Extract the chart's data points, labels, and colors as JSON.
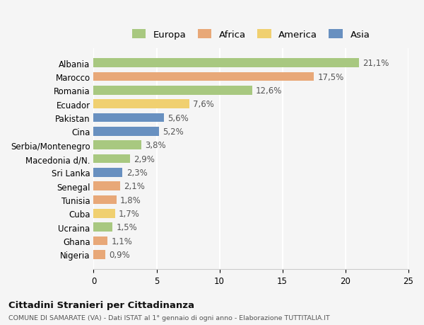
{
  "categories": [
    "Albania",
    "Marocco",
    "Romania",
    "Ecuador",
    "Pakistan",
    "Cina",
    "Serbia/Montenegro",
    "Macedonia d/N.",
    "Sri Lanka",
    "Senegal",
    "Tunisia",
    "Cuba",
    "Ucraina",
    "Ghana",
    "Nigeria"
  ],
  "values": [
    21.1,
    17.5,
    12.6,
    7.6,
    5.6,
    5.2,
    3.8,
    2.9,
    2.3,
    2.1,
    1.8,
    1.7,
    1.5,
    1.1,
    0.9
  ],
  "labels": [
    "21,1%",
    "17,5%",
    "12,6%",
    "7,6%",
    "5,6%",
    "5,2%",
    "3,8%",
    "2,9%",
    "2,3%",
    "2,1%",
    "1,8%",
    "1,7%",
    "1,5%",
    "1,1%",
    "0,9%"
  ],
  "bar_colors": [
    "#a8c880",
    "#e8a878",
    "#a8c880",
    "#f0d070",
    "#6890c0",
    "#6890c0",
    "#a8c880",
    "#a8c880",
    "#6890c0",
    "#e8a878",
    "#e8a878",
    "#f0d070",
    "#a8c880",
    "#e8a878",
    "#e8a878"
  ],
  "legend": [
    {
      "label": "Europa",
      "color": "#a8c880"
    },
    {
      "label": "Africa",
      "color": "#e8a878"
    },
    {
      "label": "America",
      "color": "#f0d070"
    },
    {
      "label": "Asia",
      "color": "#6890c0"
    }
  ],
  "xlim": [
    0,
    25
  ],
  "xticks": [
    0,
    5,
    10,
    15,
    20,
    25
  ],
  "title": "Cittadini Stranieri per Cittadinanza",
  "subtitle": "COMUNE DI SAMARATE (VA) - Dati ISTAT al 1° gennaio di ogni anno - Elaborazione TUTTITALIA.IT",
  "bg_color": "#f5f5f5",
  "grid_color": "#ffffff",
  "bar_height": 0.65,
  "label_fontsize": 8.5,
  "tick_fontsize": 8.5
}
